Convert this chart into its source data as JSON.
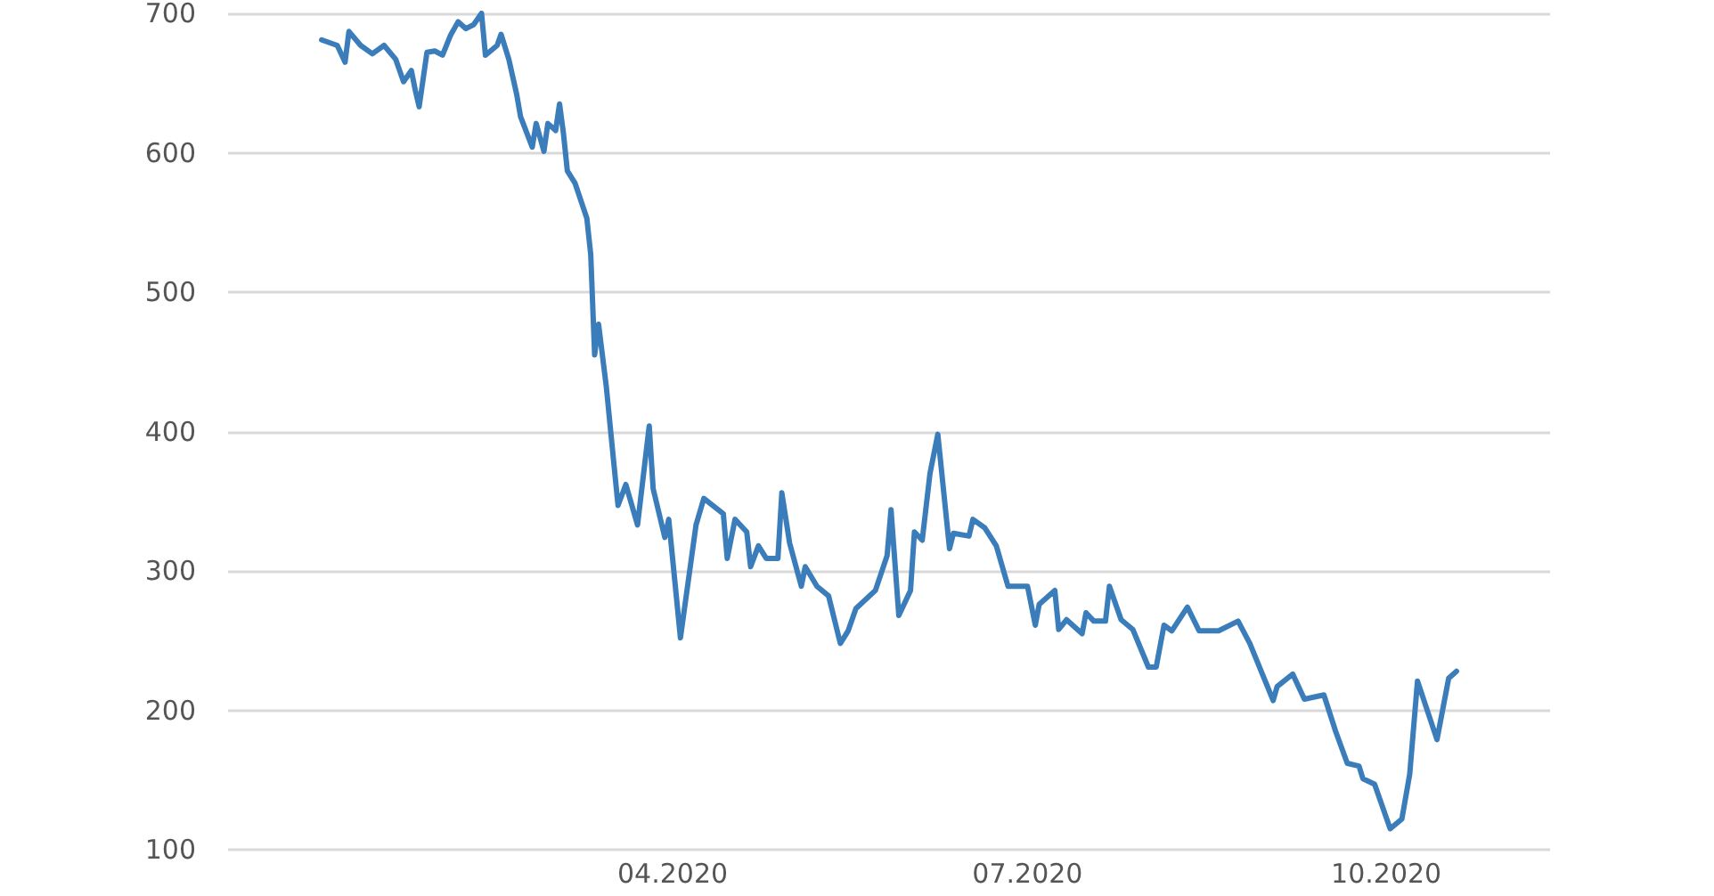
{
  "chart_data": {
    "type": "line",
    "x": [
      "2020-01-02",
      "2020-01-06",
      "2020-01-08",
      "2020-01-09",
      "2020-01-12",
      "2020-01-15",
      "2020-01-18",
      "2020-01-21",
      "2020-01-23",
      "2020-01-25",
      "2020-01-26",
      "2020-01-27",
      "2020-01-29",
      "2020-01-31",
      "2020-02-02",
      "2020-02-04",
      "2020-02-06",
      "2020-02-08",
      "2020-02-10",
      "2020-02-12",
      "2020-02-13",
      "2020-02-16",
      "2020-02-17",
      "2020-02-19",
      "2020-02-21",
      "2020-02-22",
      "2020-02-25",
      "2020-02-26",
      "2020-02-28",
      "2020-02-29",
      "2020-03-02",
      "2020-03-03",
      "2020-03-04",
      "2020-03-05",
      "2020-03-07",
      "2020-03-10",
      "2020-03-11",
      "2020-03-12",
      "2020-03-13",
      "2020-03-15",
      "2020-03-17",
      "2020-03-18",
      "2020-03-20",
      "2020-03-23",
      "2020-03-26",
      "2020-03-27",
      "2020-03-30",
      "2020-03-31",
      "2020-04-03",
      "2020-04-07",
      "2020-04-09",
      "2020-04-14",
      "2020-04-15",
      "2020-04-17",
      "2020-04-20",
      "2020-04-21",
      "2020-04-23",
      "2020-04-25",
      "2020-04-28",
      "2020-04-29",
      "2020-05-01",
      "2020-05-04",
      "2020-05-05",
      "2020-05-08",
      "2020-05-11",
      "2020-05-14",
      "2020-05-16",
      "2020-05-18",
      "2020-05-23",
      "2020-05-26",
      "2020-05-27",
      "2020-05-29",
      "2020-06-01",
      "2020-06-02",
      "2020-06-04",
      "2020-06-06",
      "2020-06-08",
      "2020-06-11",
      "2020-06-12",
      "2020-06-16",
      "2020-06-17",
      "2020-06-20",
      "2020-06-23",
      "2020-06-26",
      "2020-07-01",
      "2020-07-03",
      "2020-07-04",
      "2020-07-08",
      "2020-07-09",
      "2020-07-11",
      "2020-07-15",
      "2020-07-16",
      "2020-07-18",
      "2020-07-21",
      "2020-07-22",
      "2020-07-25",
      "2020-07-28",
      "2020-08-01",
      "2020-08-03",
      "2020-08-05",
      "2020-08-07",
      "2020-08-11",
      "2020-08-14",
      "2020-08-19",
      "2020-08-24",
      "2020-08-27",
      "2020-09-02",
      "2020-09-03",
      "2020-09-07",
      "2020-09-10",
      "2020-09-15",
      "2020-09-18",
      "2020-09-21",
      "2020-09-24",
      "2020-09-25",
      "2020-09-28",
      "2020-10-02",
      "2020-10-05",
      "2020-10-07",
      "2020-10-09",
      "2020-10-14",
      "2020-10-17",
      "2020-10-19"
    ],
    "series": [
      {
        "color": "#3a7dba",
        "values": [
          681,
          677,
          665,
          687,
          677,
          671,
          677,
          667,
          651,
          659,
          645,
          633,
          672,
          673,
          670,
          684,
          694,
          689,
          692,
          700,
          670,
          677,
          685,
          667,
          642,
          626,
          604,
          621,
          601,
          621,
          616,
          635,
          614,
          587,
          578,
          553,
          527,
          455,
          477,
          432,
          375,
          347,
          362,
          333,
          404,
          359,
          324,
          337,
          252,
          333,
          352,
          341,
          309,
          337,
          328,
          303,
          318,
          309,
          309,
          356,
          320,
          289,
          303,
          289,
          282,
          248,
          257,
          273,
          286,
          311,
          344,
          268,
          286,
          328,
          322,
          370,
          398,
          316,
          327,
          325,
          337,
          331,
          318,
          289,
          289,
          261,
          276,
          286,
          258,
          265,
          255,
          270,
          264,
          264,
          289,
          265,
          258,
          231,
          231,
          261,
          257,
          274,
          257,
          257,
          264,
          248,
          207,
          217,
          226,
          208,
          211,
          185,
          162,
          160,
          151,
          147,
          115,
          122,
          154,
          221,
          179,
          223,
          228
        ]
      }
    ],
    "xlim": [
      "2019-12-09",
      "2020-11-12"
    ],
    "xticks": [
      {
        "value": "2020-04-01",
        "label": "04.2020"
      },
      {
        "value": "2020-07-01",
        "label": "07.2020"
      },
      {
        "value": "2020-10-01",
        "label": "10.2020"
      }
    ],
    "ylim": [
      100,
      700
    ],
    "yticks": [
      100,
      200,
      300,
      400,
      500,
      600,
      700
    ],
    "grid": "y",
    "marker": "none",
    "line_style": "solid"
  }
}
